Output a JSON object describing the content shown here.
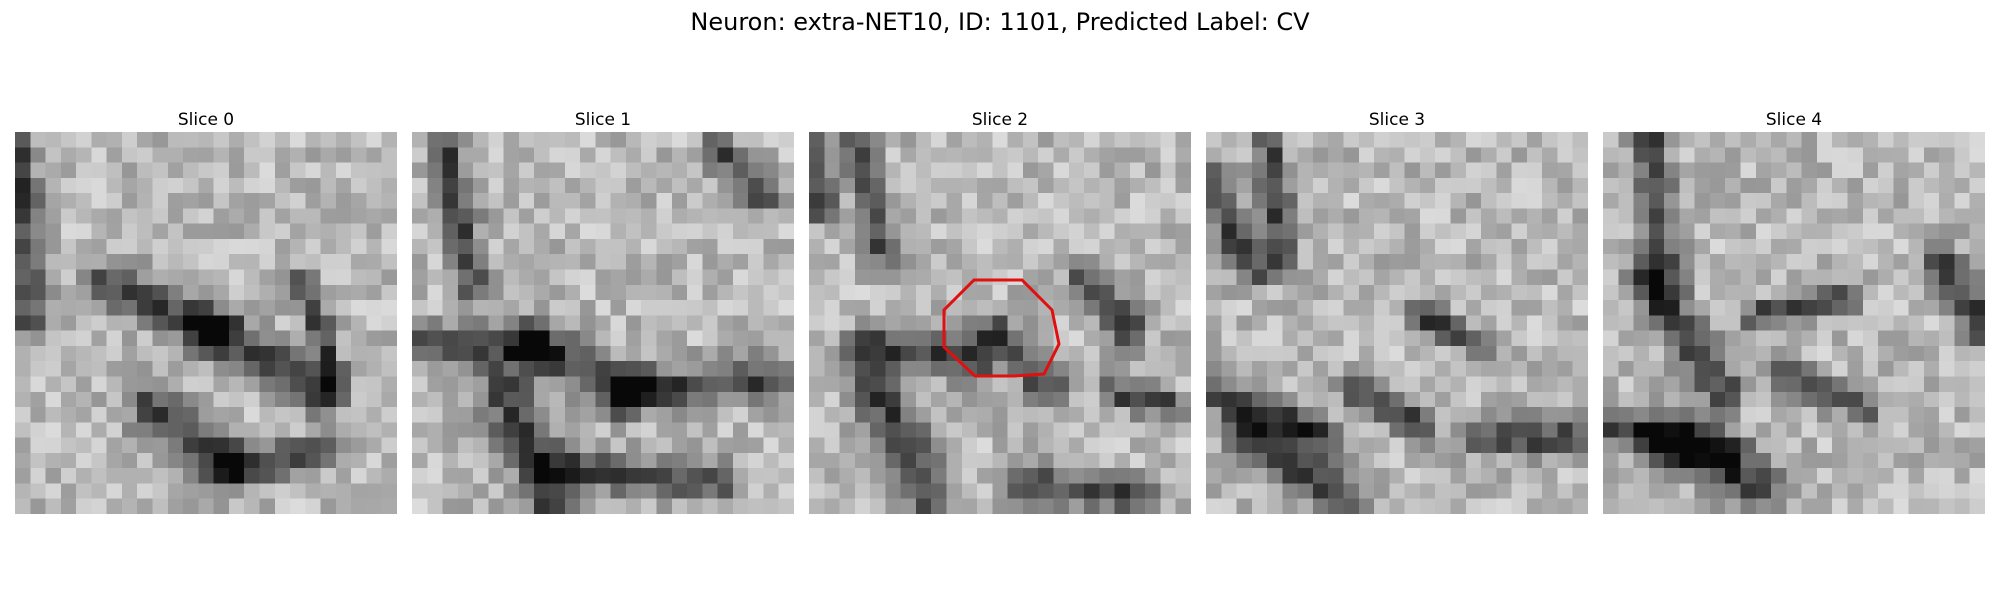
{
  "figure": {
    "title": "Neuron: extra-NET10, ID: 1101, Predicted Label: CV"
  },
  "panels": [
    {
      "label": "Slice 0",
      "has_roi": false
    },
    {
      "label": "Slice 1",
      "has_roi": false
    },
    {
      "label": "Slice 2",
      "has_roi": true
    },
    {
      "label": "Slice 3",
      "has_roi": false
    },
    {
      "label": "Slice 4",
      "has_roi": false
    }
  ],
  "colors": {
    "roi_outline": "#e01010",
    "colormap": "gray"
  },
  "image_grid": {
    "rows": 25,
    "cols": 25
  }
}
